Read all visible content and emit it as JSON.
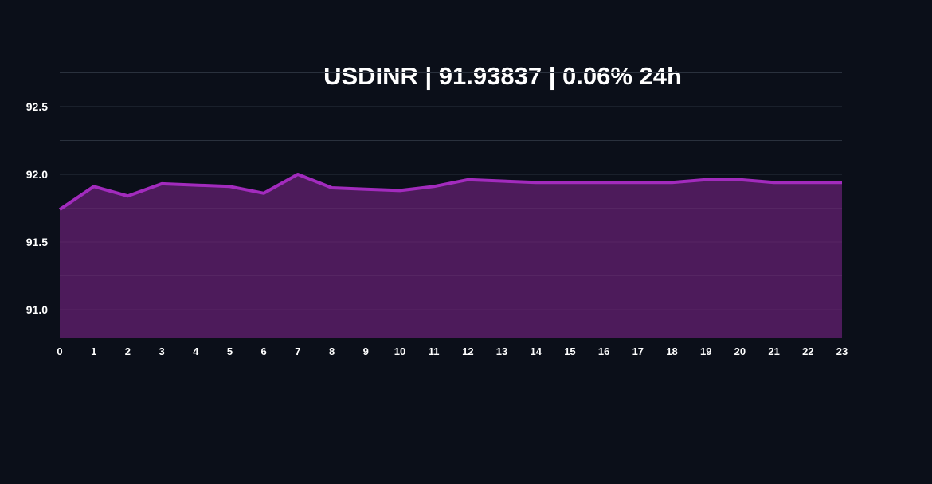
{
  "title": "USDINR | 91.93837 | 0.06% 24h",
  "colors": {
    "background": "#0b0f19",
    "grid": "#1f2633",
    "line": "#a22bbd",
    "fill": "#4d1b5b",
    "text": "#ffffff"
  },
  "chart_data": {
    "type": "area",
    "title": "USDINR | 91.93837 | 0.06% 24h",
    "xlabel": "",
    "ylabel": "",
    "x": [
      0,
      1,
      2,
      3,
      4,
      5,
      6,
      7,
      8,
      9,
      10,
      11,
      12,
      13,
      14,
      15,
      16,
      17,
      18,
      19,
      20,
      21,
      22,
      23
    ],
    "series": [
      {
        "name": "USDINR",
        "values": [
          91.74,
          91.91,
          91.84,
          91.93,
          91.92,
          91.91,
          91.86,
          92.0,
          91.9,
          91.89,
          91.88,
          91.91,
          91.96,
          91.95,
          91.94,
          91.94,
          91.94,
          91.94,
          91.94,
          91.96,
          91.96,
          91.94,
          91.94,
          91.94
        ]
      }
    ],
    "yticks": [
      91.0,
      91.5,
      92.0,
      92.5
    ],
    "ytick_labels": [
      "91.0",
      "91.5",
      "92.0",
      "92.5"
    ],
    "ylim": [
      90.79,
      92.75
    ],
    "xlim": [
      0,
      23
    ],
    "grid": true,
    "legend": false
  }
}
